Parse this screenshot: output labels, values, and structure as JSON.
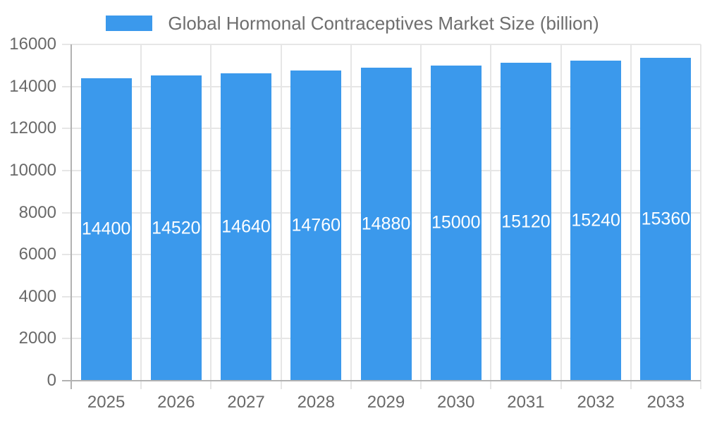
{
  "legend": {
    "swatch_color": "#3b99ec"
  },
  "chart_data": {
    "type": "bar",
    "title": "Global Hormonal Contraceptives Market Size (billion)",
    "categories": [
      "2025",
      "2026",
      "2027",
      "2028",
      "2029",
      "2030",
      "2031",
      "2032",
      "2033"
    ],
    "values": [
      14400,
      14520,
      14640,
      14760,
      14880,
      15000,
      15120,
      15240,
      15360
    ],
    "bar_labels": [
      "14400",
      "14520",
      "14640",
      "14760",
      "14880",
      "15000",
      "15120",
      "15240",
      "15360"
    ],
    "xlabel": "",
    "ylabel": "",
    "ylim": [
      0,
      16000
    ],
    "ytick_step": 2000,
    "yticks": [
      0,
      2000,
      4000,
      6000,
      8000,
      10000,
      12000,
      14000,
      16000
    ],
    "grid": true,
    "legend_position": "top",
    "bar_color": "#3b99ec",
    "bar_label_color": "#ffffff",
    "grid_color": "#e6e6e6",
    "axis_line_color": "#b2b2b2",
    "tick_label_color": "#696969"
  }
}
